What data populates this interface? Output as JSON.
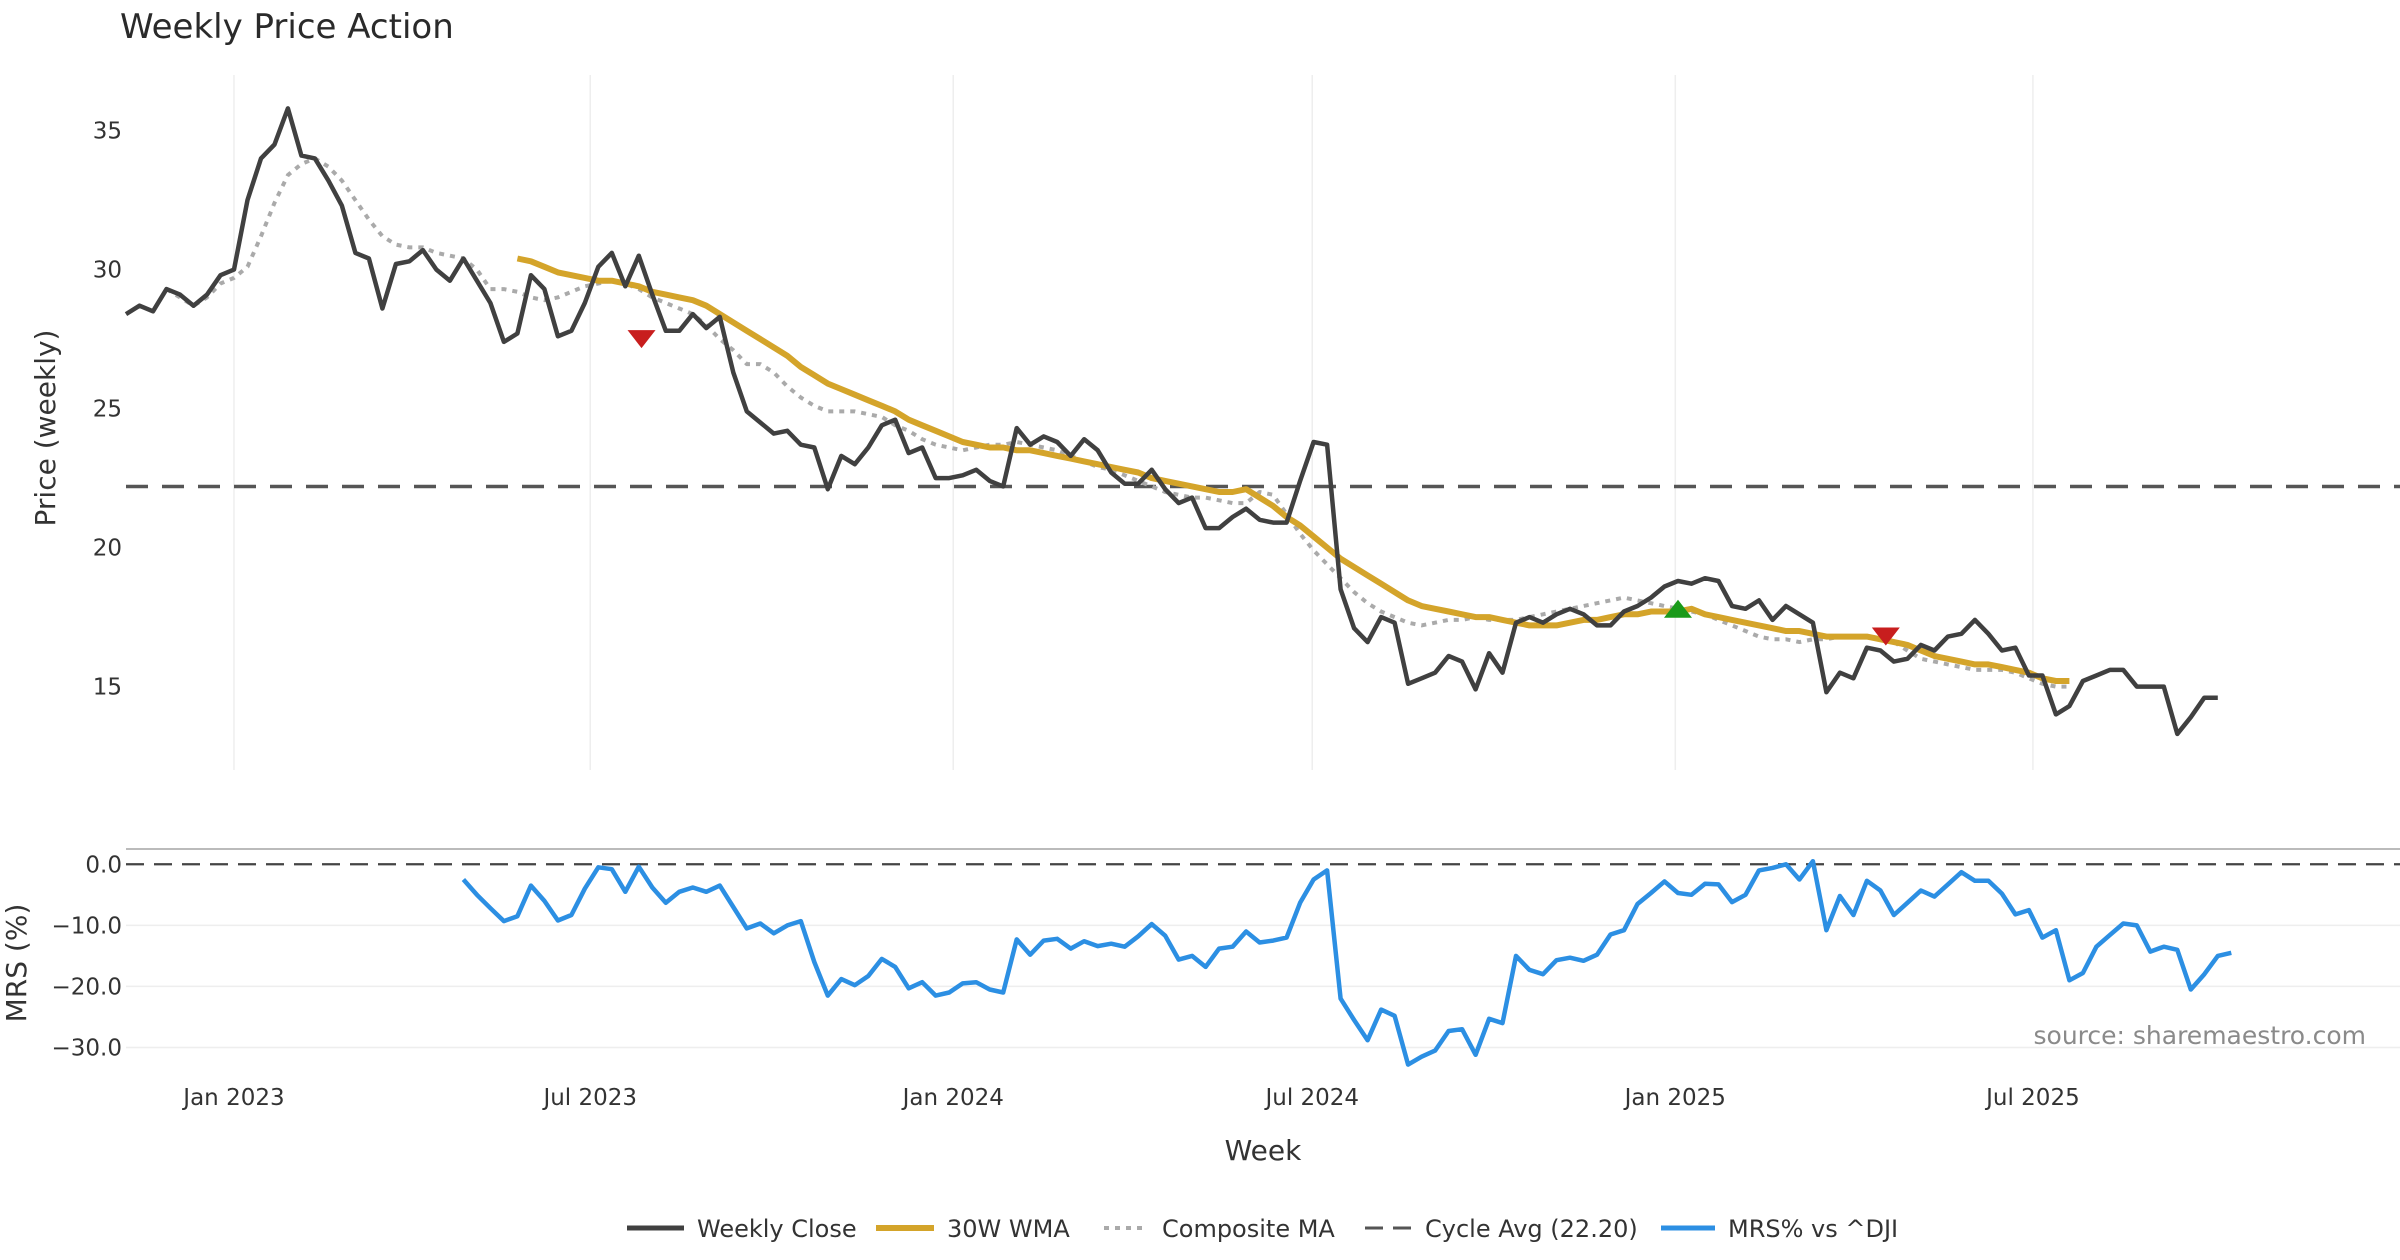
{
  "chart_data": {
    "type": "line",
    "title": "Weekly Price Action",
    "xlabel": "Week",
    "source": "source: sharemaestro.com",
    "price_panel": {
      "ylabel": "Price (weekly)",
      "ylim": [
        12,
        37
      ],
      "yticks": [
        "15",
        "20",
        "25",
        "30",
        "35"
      ],
      "ytick_values": [
        15,
        20,
        25,
        30,
        35
      ],
      "cycle_avg": 22.2
    },
    "mrs_panel": {
      "ylabel": "MRS (%)",
      "ylim": [
        -34.5,
        2.5
      ],
      "yticks": [
        "0.0",
        "−10.0",
        "−20.0",
        "−30.0"
      ],
      "ytick_values": [
        0,
        -10,
        -20,
        -30
      ]
    },
    "x_range_weeks": [
      -8,
      160.5
    ],
    "xticks": [
      {
        "label": "Jan 2023",
        "week": 0
      },
      {
        "label": "Jul 2023",
        "week": 26.4
      },
      {
        "label": "Jan 2024",
        "week": 53.3
      },
      {
        "label": "Jul 2024",
        "week": 79.9
      },
      {
        "label": "Jan 2025",
        "week": 106.8
      },
      {
        "label": "Jul 2025",
        "week": 133.3
      }
    ],
    "legend": [
      "Weekly Close",
      "30W WMA",
      "Composite MA",
      "Cycle Avg (22.20)",
      "MRS% vs ^DJI"
    ],
    "colors": {
      "close": "#404040",
      "wma": "#d4a42a",
      "composite": "#aaaaaa",
      "cycle": "#555555",
      "mrs": "#2c8fe3",
      "buy": "#1a9a1a",
      "sell": "#c81e1e",
      "grid": "#eeeeee"
    },
    "series": [
      {
        "name": "Weekly Close",
        "start_week": -8,
        "values": [
          28.4,
          28.7,
          28.5,
          29.3,
          29.1,
          28.7,
          29.1,
          29.8,
          30.0,
          32.5,
          34.0,
          34.5,
          35.8,
          34.1,
          34.0,
          33.2,
          32.3,
          30.6,
          30.4,
          28.6,
          30.2,
          30.3,
          30.7,
          30.0,
          29.6,
          30.4,
          29.6,
          28.8,
          27.4,
          27.7,
          29.8,
          29.3,
          27.6,
          27.8,
          28.8,
          30.1,
          30.6,
          29.4,
          30.5,
          29.1,
          27.8,
          27.8,
          28.4,
          27.9,
          28.3,
          26.3,
          24.9,
          24.5,
          24.1,
          24.2,
          23.7,
          23.6,
          22.1,
          23.3,
          23.0,
          23.6,
          24.4,
          24.6,
          23.4,
          23.6,
          22.5,
          22.5,
          22.6,
          22.8,
          22.4,
          22.2,
          24.3,
          23.7,
          24.0,
          23.8,
          23.3,
          23.9,
          23.5,
          22.7,
          22.3,
          22.3,
          22.8,
          22.1,
          21.6,
          21.8,
          20.7,
          20.7,
          21.1,
          21.4,
          21.0,
          20.9,
          20.9,
          22.4,
          23.8,
          23.7,
          18.5,
          17.1,
          16.6,
          17.5,
          17.3,
          15.1,
          15.3,
          15.5,
          16.1,
          15.9,
          14.9,
          16.2,
          15.5,
          17.3,
          17.5,
          17.3,
          17.6,
          17.8,
          17.6,
          17.2,
          17.2,
          17.7,
          17.9,
          18.2,
          18.6,
          18.8,
          18.7,
          18.9,
          18.8,
          17.9,
          17.8,
          18.1,
          17.4,
          17.9,
          17.6,
          17.3,
          14.8,
          15.5,
          15.3,
          16.4,
          16.3,
          15.9,
          16.0,
          16.5,
          16.3,
          16.8,
          16.9,
          17.4,
          16.9,
          16.3,
          16.4,
          15.4,
          15.4,
          14.0,
          14.3,
          15.2,
          15.4,
          15.6,
          15.6,
          15.0,
          15.0,
          15.0,
          13.3,
          13.9,
          14.6,
          14.6
        ]
      },
      {
        "name": "30W WMA",
        "start_week": 21,
        "values": [
          30.4,
          30.3,
          30.1,
          29.9,
          29.8,
          29.7,
          29.6,
          29.6,
          29.5,
          29.4,
          29.2,
          29.1,
          29.0,
          28.9,
          28.7,
          28.4,
          28.1,
          27.8,
          27.5,
          27.2,
          26.9,
          26.5,
          26.2,
          25.9,
          25.7,
          25.5,
          25.3,
          25.1,
          24.9,
          24.6,
          24.4,
          24.2,
          24.0,
          23.8,
          23.7,
          23.6,
          23.6,
          23.5,
          23.5,
          23.4,
          23.3,
          23.2,
          23.1,
          23.0,
          22.9,
          22.8,
          22.7,
          22.5,
          22.4,
          22.3,
          22.2,
          22.1,
          22.0,
          22.0,
          22.1,
          21.8,
          21.5,
          21.1,
          20.8,
          20.4,
          20.0,
          19.6,
          19.3,
          19.0,
          18.7,
          18.4,
          18.1,
          17.9,
          17.8,
          17.7,
          17.6,
          17.5,
          17.5,
          17.4,
          17.3,
          17.2,
          17.2,
          17.2,
          17.3,
          17.4,
          17.4,
          17.5,
          17.6,
          17.6,
          17.7,
          17.7,
          17.7,
          17.8,
          17.6,
          17.5,
          17.4,
          17.3,
          17.2,
          17.1,
          17.0,
          17.0,
          16.9,
          16.8,
          16.8,
          16.8,
          16.8,
          16.7,
          16.6,
          16.5,
          16.3,
          16.1,
          16.0,
          15.9,
          15.8,
          15.8,
          15.7,
          15.6,
          15.5,
          15.3,
          15.2,
          15.2
        ]
      },
      {
        "name": "Composite MA",
        "start_week": -5,
        "values": [
          29.3,
          29.0,
          28.7,
          29.0,
          29.5,
          29.7,
          30.1,
          31.2,
          32.4,
          33.4,
          33.8,
          34.0,
          33.7,
          33.2,
          32.5,
          31.8,
          31.2,
          30.9,
          30.8,
          30.8,
          30.6,
          30.5,
          30.4,
          30.0,
          29.3,
          29.3,
          29.2,
          29.0,
          28.9,
          29.0,
          29.2,
          29.4,
          29.5,
          29.6,
          29.5,
          29.3,
          29.0,
          28.8,
          28.6,
          28.4,
          28.0,
          27.5,
          27.1,
          26.6,
          26.6,
          26.3,
          25.8,
          25.4,
          25.1,
          24.9,
          24.9,
          24.9,
          24.8,
          24.7,
          24.4,
          24.2,
          23.9,
          23.7,
          23.6,
          23.5,
          23.6,
          23.7,
          23.7,
          23.8,
          23.7,
          23.6,
          23.5,
          23.3,
          23.1,
          22.9,
          22.8,
          22.6,
          22.4,
          22.2,
          22.0,
          21.9,
          21.8,
          21.8,
          21.7,
          21.6,
          21.6,
          22.0,
          21.9,
          21.2,
          20.5,
          19.9,
          19.4,
          18.9,
          18.4,
          18.0,
          17.7,
          17.5,
          17.3,
          17.2,
          17.3,
          17.4,
          17.4,
          17.5,
          17.4,
          17.4,
          17.4,
          17.5,
          17.6,
          17.7,
          17.8,
          17.9,
          18.0,
          18.1,
          18.2,
          18.1,
          18.0,
          17.9,
          17.8,
          17.7,
          17.6,
          17.4,
          17.2,
          17.0,
          16.8,
          16.7,
          16.7,
          16.6,
          16.7,
          16.7,
          16.8,
          16.8,
          16.8,
          16.7,
          16.6,
          16.3,
          16.0,
          15.9,
          15.8,
          15.7,
          15.6,
          15.6,
          15.6,
          15.5,
          15.3,
          15.1,
          15.0,
          15.0
        ]
      },
      {
        "name": "MRS% vs ^DJI",
        "start_week": 17,
        "values": [
          -2.5,
          -5.0,
          -7.2,
          -9.3,
          -8.5,
          -3.5,
          -6.0,
          -9.2,
          -8.3,
          -4.0,
          -0.5,
          -0.8,
          -4.5,
          -0.4,
          -3.8,
          -6.3,
          -4.5,
          -3.8,
          -4.5,
          -3.5,
          -7.0,
          -10.5,
          -9.7,
          -11.3,
          -10.0,
          -9.3,
          -16.0,
          -21.5,
          -18.8,
          -19.8,
          -18.3,
          -15.5,
          -16.8,
          -20.3,
          -19.3,
          -21.5,
          -21.0,
          -19.5,
          -19.3,
          -20.5,
          -21.0,
          -12.3,
          -14.8,
          -12.5,
          -12.2,
          -13.8,
          -12.6,
          -13.4,
          -13.0,
          -13.5,
          -11.8,
          -9.8,
          -11.7,
          -15.6,
          -15.0,
          -16.8,
          -13.8,
          -13.5,
          -11.0,
          -12.8,
          -12.5,
          -12.0,
          -6.3,
          -2.5,
          -1.0,
          -22.0,
          -25.5,
          -28.8,
          -23.8,
          -24.8,
          -32.8,
          -31.5,
          -30.5,
          -27.3,
          -27.0,
          -31.2,
          -25.3,
          -26.0,
          -15.0,
          -17.3,
          -18.0,
          -15.7,
          -15.3,
          -15.8,
          -14.8,
          -11.5,
          -10.8,
          -6.5,
          -4.7,
          -2.8,
          -4.7,
          -5.0,
          -3.2,
          -3.3,
          -6.2,
          -5.0,
          -1.0,
          -0.6,
          0.0,
          -2.5,
          0.5,
          -10.8,
          -5.2,
          -8.3,
          -2.7,
          -4.3,
          -8.3,
          -6.3,
          -4.3,
          -5.3,
          -3.3,
          -1.3,
          -2.7,
          -2.7,
          -4.8,
          -8.2,
          -7.5,
          -12.0,
          -10.8,
          -19.0,
          -17.8,
          -13.5,
          -11.6,
          -9.7,
          -10.0,
          -14.3,
          -13.5,
          -14.0,
          -20.5,
          -18.0,
          -15.0,
          -14.5
        ]
      }
    ],
    "signals": [
      {
        "type": "sell",
        "week": 30.2,
        "price": 27.5
      },
      {
        "type": "buy",
        "week": 107.0,
        "price": 17.8
      },
      {
        "type": "sell",
        "week": 122.4,
        "price": 16.8
      }
    ]
  }
}
